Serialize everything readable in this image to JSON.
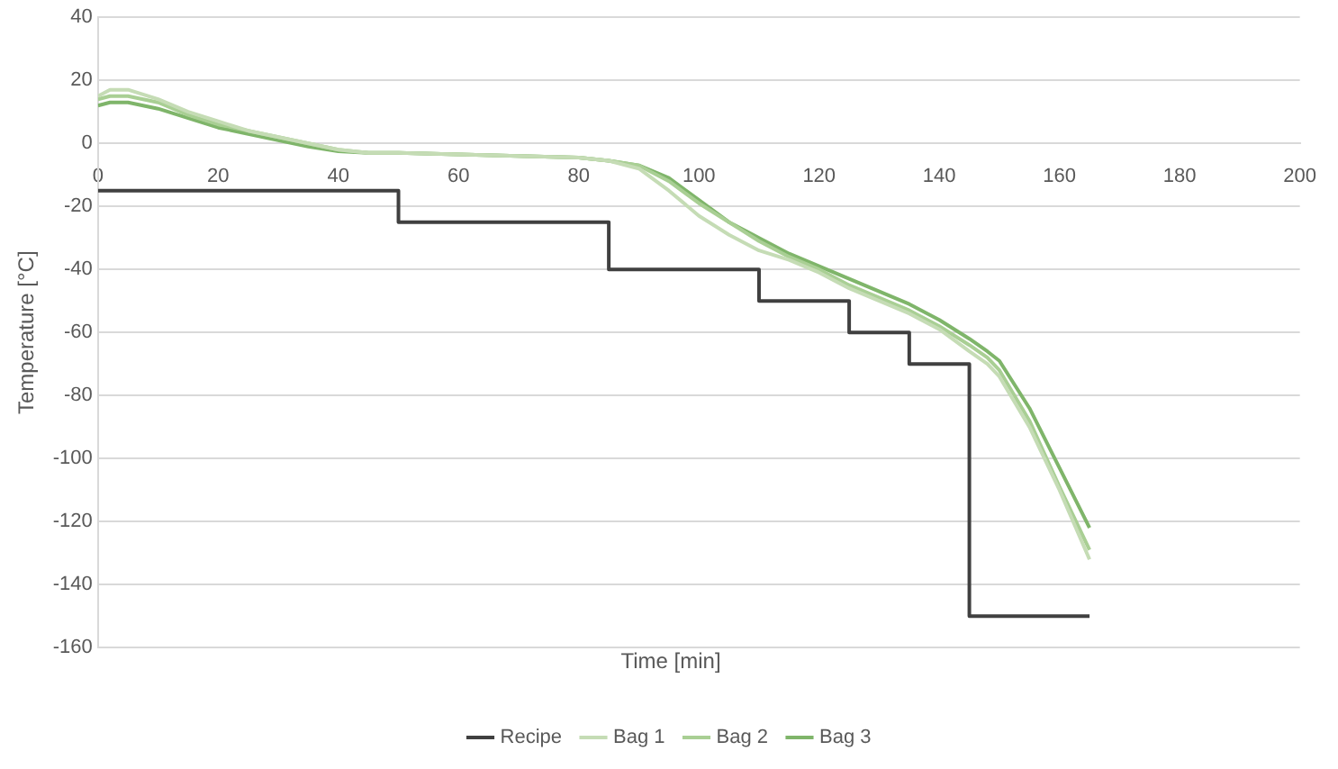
{
  "chart_data": {
    "type": "line",
    "xlabel": "Time [min]",
    "ylabel": "Temperature [°C]",
    "xlim": [
      0,
      200
    ],
    "xticks": [
      0,
      20,
      40,
      60,
      80,
      100,
      120,
      140,
      160,
      180,
      200
    ],
    "ylim": [
      -160,
      40
    ],
    "yticks": [
      -160,
      -140,
      -120,
      -100,
      -80,
      -60,
      -40,
      -20,
      0,
      20,
      40
    ],
    "grid": "y",
    "legend": "bottom",
    "marker": "none",
    "series": [
      {
        "name": "Recipe",
        "type": "step",
        "color": "#404040",
        "x": [
          0,
          50,
          85,
          110,
          125,
          135,
          145,
          165
        ],
        "values": [
          -15,
          -25,
          -40,
          -50,
          -60,
          -70,
          -150,
          -150
        ]
      },
      {
        "name": "Bag 1",
        "color": "#c5dcb5",
        "x": [
          0,
          2,
          5,
          10,
          15,
          20,
          25,
          30,
          35,
          40,
          45,
          50,
          60,
          70,
          80,
          85,
          90,
          95,
          100,
          105,
          110,
          115,
          120,
          125,
          130,
          135,
          140,
          145,
          148,
          150,
          155,
          160,
          165
        ],
        "values": [
          15,
          17,
          17,
          14,
          10,
          7,
          4,
          2,
          0,
          -2,
          -3,
          -3,
          -3.5,
          -4,
          -4.5,
          -5.5,
          -8,
          -15,
          -23,
          -29,
          -34,
          -37,
          -41,
          -46,
          -50,
          -54,
          -59,
          -66,
          -70,
          -74,
          -90,
          -110,
          -132
        ]
      },
      {
        "name": "Bag 2",
        "color": "#a9cf94",
        "x": [
          0,
          2,
          5,
          10,
          15,
          20,
          25,
          30,
          35,
          40,
          45,
          50,
          60,
          70,
          80,
          85,
          90,
          95,
          100,
          105,
          110,
          115,
          120,
          125,
          130,
          135,
          140,
          145,
          148,
          150,
          155,
          160,
          165
        ],
        "values": [
          14,
          15,
          15,
          13,
          9,
          6,
          4,
          2,
          0,
          -2,
          -3,
          -3,
          -3.5,
          -4,
          -4.5,
          -5.5,
          -7,
          -12,
          -19,
          -25,
          -31,
          -36,
          -40,
          -45,
          -49,
          -53,
          -58,
          -64,
          -68,
          -72,
          -88,
          -109,
          -129
        ]
      },
      {
        "name": "Bag 3",
        "color": "#7fb56a",
        "x": [
          0,
          2,
          5,
          10,
          15,
          20,
          25,
          30,
          35,
          40,
          45,
          50,
          60,
          70,
          80,
          85,
          90,
          95,
          100,
          105,
          110,
          115,
          120,
          125,
          130,
          135,
          140,
          145,
          148,
          150,
          155,
          160,
          165
        ],
        "values": [
          12,
          13,
          13,
          11,
          8,
          5,
          3,
          1,
          -1,
          -2.5,
          -3,
          -3,
          -3.5,
          -4,
          -4.5,
          -5.5,
          -7,
          -11,
          -18,
          -25,
          -30,
          -35,
          -39,
          -43,
          -47,
          -51,
          -56,
          -62,
          -66,
          -69,
          -84,
          -103,
          -122
        ]
      }
    ]
  }
}
